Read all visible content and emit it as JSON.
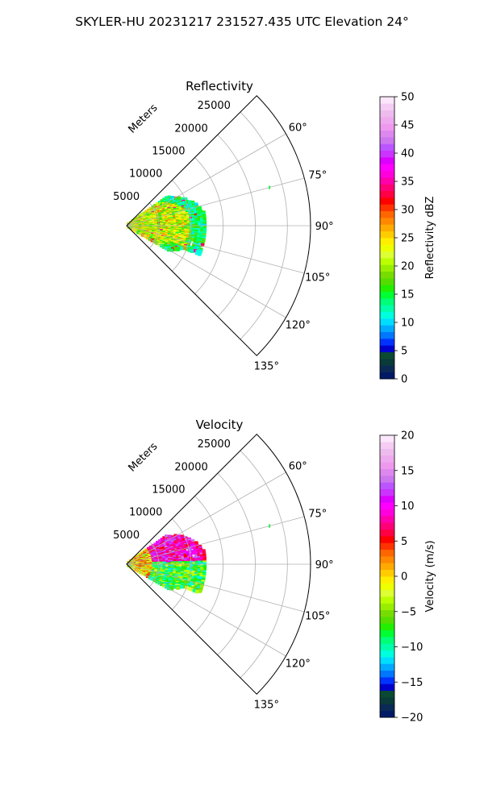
{
  "figure": {
    "title": "SKYLER-HU  20231217  231527.435 UTC Elevation 24°"
  },
  "chart_data": [
    {
      "type": "polar-sector",
      "title": "Reflectivity",
      "radial_label": "Meters",
      "theta_range_deg": [
        45,
        135
      ],
      "r_range": [
        0,
        28600
      ],
      "range_ticks": [
        "5000",
        "10000",
        "15000",
        "20000",
        "25000"
      ],
      "range_tick_values": [
        5000,
        10000,
        15000,
        20000,
        25000
      ],
      "azimuth_ticks": [
        "60°",
        "75°",
        "90°",
        "105°",
        "120°",
        "135°"
      ],
      "azimuth_tick_values": [
        60,
        75,
        90,
        105,
        120,
        135
      ],
      "grid": true,
      "colorbar": {
        "label": "Reflectivity dBZ",
        "min": 0,
        "max": 50,
        "ticks": [
          "0",
          "5",
          "10",
          "15",
          "20",
          "25",
          "30",
          "35",
          "40",
          "45",
          "50"
        ],
        "tick_values": [
          0,
          5,
          10,
          15,
          20,
          25,
          30,
          35,
          40,
          45,
          50
        ],
        "stops": [
          "#001a66",
          "#0a2a55",
          "#0a3a3a",
          "#0a4a33",
          "#0000cc",
          "#0033ff",
          "#0077ff",
          "#00aaff",
          "#00ddff",
          "#00ffdd",
          "#00ffaa",
          "#00ff77",
          "#00ff33",
          "#22ee00",
          "#55dd00",
          "#77dd00",
          "#99ee00",
          "#bbff00",
          "#ddff33",
          "#eeff00",
          "#ffee00",
          "#ffcc00",
          "#ffaa00",
          "#ff8800",
          "#ff6600",
          "#ff3300",
          "#ff0000",
          "#ff0044",
          "#ff0077",
          "#ff00aa",
          "#ff00dd",
          "#ff00ff",
          "#dd00ff",
          "#cc33ff",
          "#bb55ff",
          "#cc77ee",
          "#dd88ee",
          "#ee99ee",
          "#eeaaee",
          "#eebbee",
          "#f4ccf4",
          "#fbe6fb"
        ]
      },
      "echo": {
        "description_only": false,
        "range_m": [
          0,
          12500
        ],
        "azimuth_deg": [
          55,
          120
        ],
        "dominant_values_dbz": [
          15,
          28
        ],
        "max_dbz": 36,
        "isolated_return": {
          "azimuth_deg": 75,
          "range_m": 23000,
          "value_dbz": 15
        }
      }
    },
    {
      "type": "polar-sector",
      "title": "Velocity",
      "radial_label": "Meters",
      "theta_range_deg": [
        45,
        135
      ],
      "r_range": [
        0,
        28600
      ],
      "range_ticks": [
        "5000",
        "10000",
        "15000",
        "20000",
        "25000"
      ],
      "range_tick_values": [
        5000,
        10000,
        15000,
        20000,
        25000
      ],
      "azimuth_ticks": [
        "60°",
        "75°",
        "90°",
        "105°",
        "120°",
        "135°"
      ],
      "azimuth_tick_values": [
        60,
        75,
        90,
        105,
        120,
        135
      ],
      "grid": true,
      "colorbar": {
        "label": "Velocity (m/s)",
        "min": -20,
        "max": 20,
        "ticks": [
          "−20",
          "−15",
          "−10",
          "−5",
          "0",
          "5",
          "10",
          "15",
          "20"
        ],
        "tick_values": [
          -20,
          -15,
          -10,
          -5,
          0,
          5,
          10,
          15,
          20
        ],
        "stops": [
          "#001a66",
          "#0a2a55",
          "#0a3a3a",
          "#0a4a33",
          "#0000cc",
          "#0033ff",
          "#0077ff",
          "#00aaff",
          "#00ddff",
          "#00ffdd",
          "#00ffaa",
          "#00ff77",
          "#00ff33",
          "#22ee00",
          "#55dd00",
          "#77dd00",
          "#99ee00",
          "#bbff00",
          "#ddff33",
          "#eeff00",
          "#ffee00",
          "#ffcc00",
          "#ffaa00",
          "#ff8800",
          "#ff6600",
          "#ff3300",
          "#ff0000",
          "#ff0044",
          "#ff0077",
          "#ff00aa",
          "#ff00dd",
          "#ff00ff",
          "#dd00ff",
          "#cc33ff",
          "#bb55ff",
          "#cc77ee",
          "#dd88ee",
          "#ee99ee",
          "#eeaaee",
          "#eebbee",
          "#f4ccf4",
          "#fbe6fb"
        ]
      },
      "echo": {
        "range_m": [
          0,
          12500
        ],
        "azimuth_deg": [
          55,
          120
        ],
        "outbound_azimuth_deg": [
          55,
          80
        ],
        "outbound_values_ms": [
          5,
          14
        ],
        "inbound_azimuth_deg": [
          95,
          120
        ],
        "inbound_values_ms": [
          -12,
          -2
        ],
        "isolated_return": {
          "azimuth_deg": 75,
          "range_m": 23000,
          "value_ms": -8
        }
      }
    }
  ]
}
